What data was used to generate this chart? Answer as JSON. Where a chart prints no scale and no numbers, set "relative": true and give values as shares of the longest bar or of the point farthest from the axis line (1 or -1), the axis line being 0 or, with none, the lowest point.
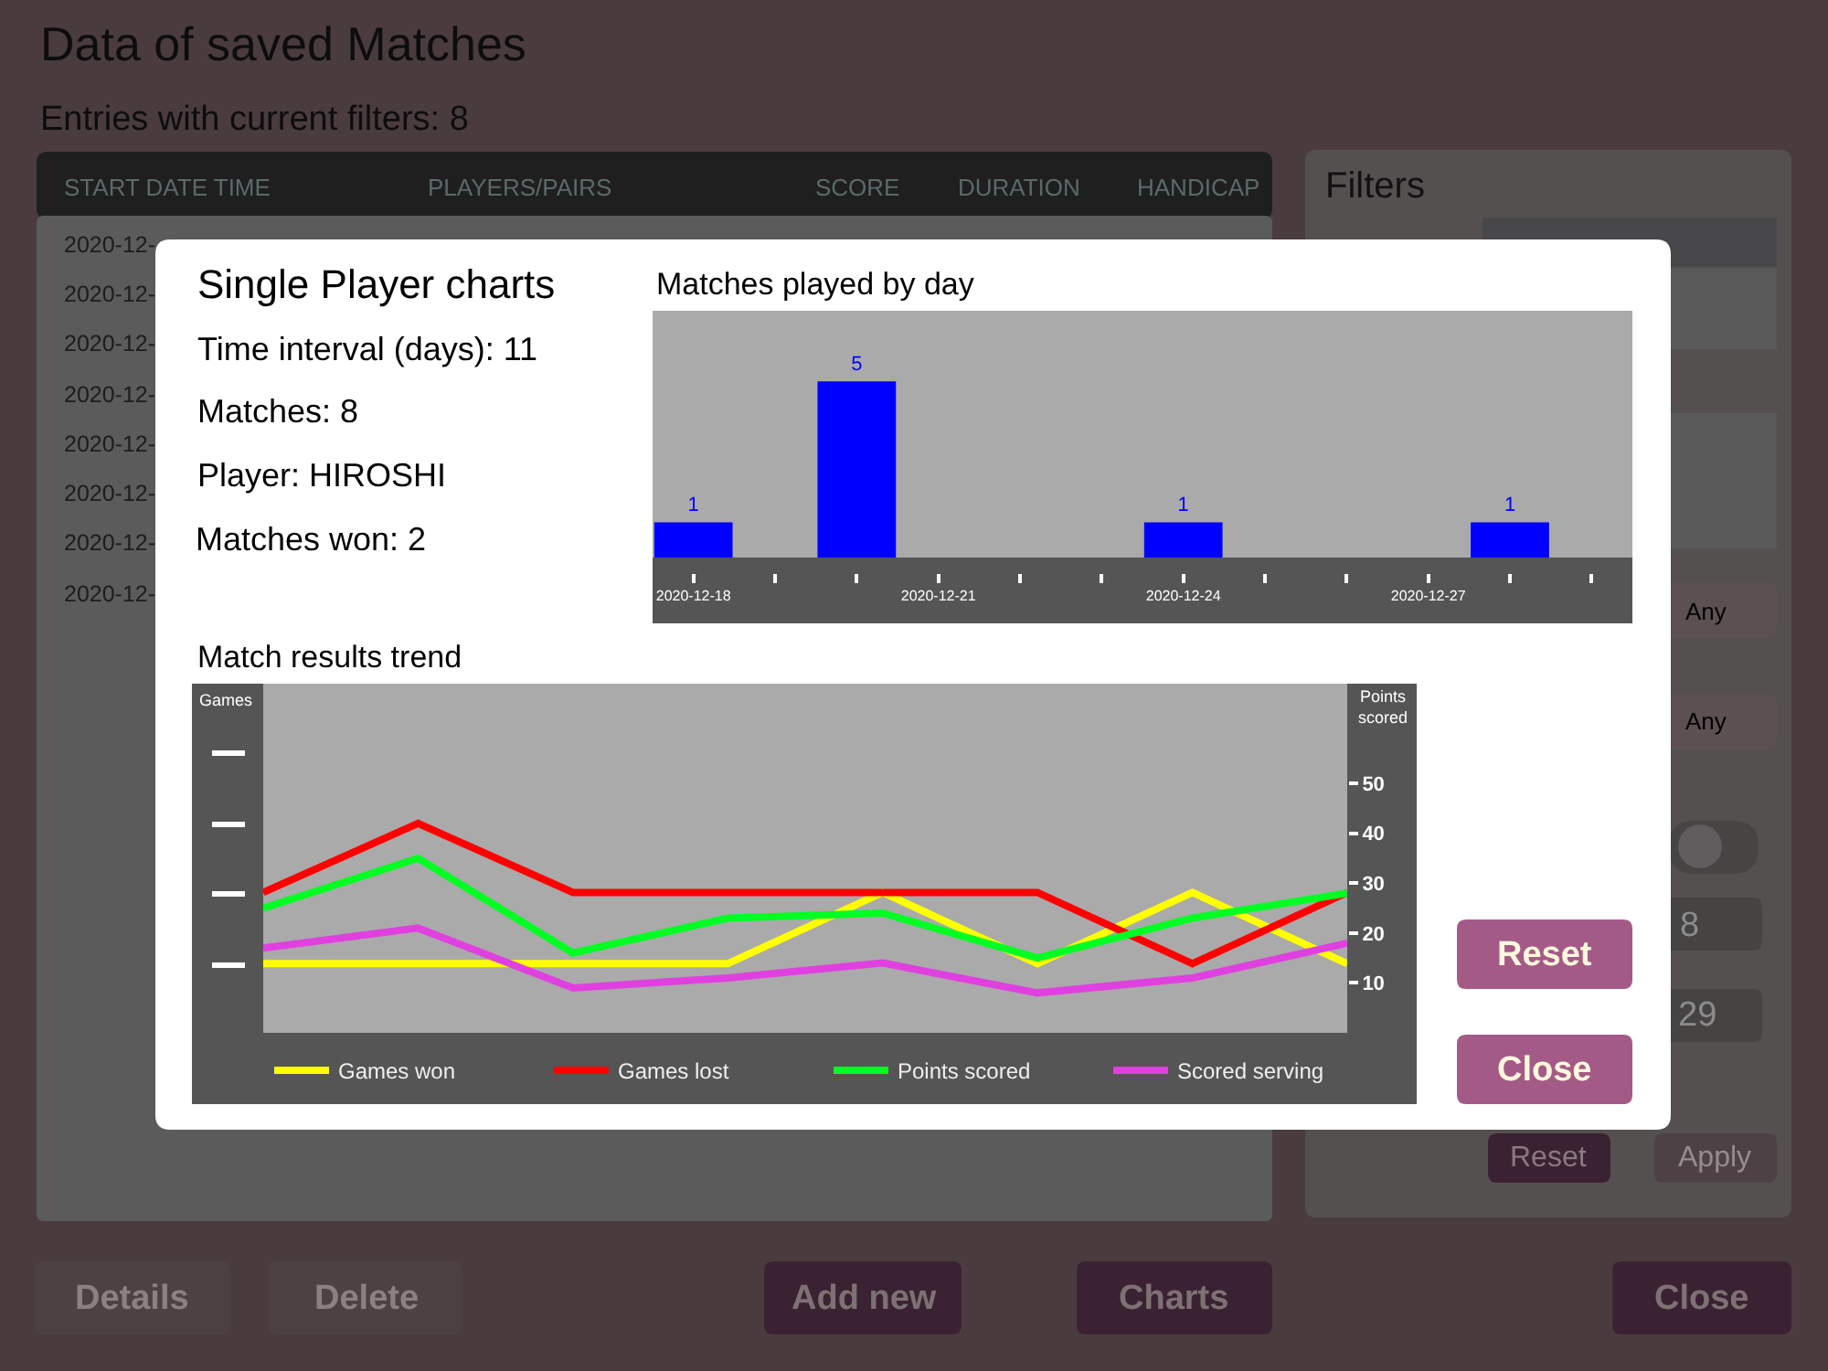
{
  "chart_data": [
    {
      "type": "other",
      "title": "Data of saved Matches",
      "subtitle": "Entries with current filters: 8",
      "annotations": [
        "START DATE TIME",
        "PLAYERS/PAIRS",
        "SCORE",
        "DURATION",
        "HANDICAP",
        "2020-12-",
        "2020-12-",
        "2020-12-",
        "2020-12-",
        "2020-12-",
        "2020-12-",
        "2020-12-",
        "2020-12-",
        "Filters",
        "Any",
        "Any",
        "8",
        "29",
        "Reset",
        "Apply",
        "Details",
        "Delete",
        "Add new",
        "Charts",
        "Close"
      ]
    },
    {
      "type": "other",
      "title": "Single Player charts",
      "annotations": [
        "Time interval (days): 11",
        "Matches: 8",
        "Player: HIROSHI",
        "Matches won: 2",
        "Reset",
        "Close"
      ]
    },
    {
      "type": "bar",
      "title": "Matches played by day",
      "x": [
        "2020-12-18",
        "2020-12-20",
        "2020-12-24",
        "2020-12-28"
      ],
      "values": [
        1,
        5,
        1,
        1
      ],
      "color": "#0000ff",
      "data_labels": true,
      "xlim": [
        "2020-12-17T12:00",
        "2020-12-29T12:00"
      ],
      "xticks": [
        "2020-12-18",
        {
          "value": "2020-12-19",
          "label": null
        },
        {
          "value": "2020-12-20",
          "label": null
        },
        "2020-12-21",
        {
          "value": "2020-12-22",
          "label": null
        },
        {
          "value": "2020-12-23",
          "label": null
        },
        "2020-12-24",
        {
          "value": "2020-12-25",
          "label": null
        },
        {
          "value": "2020-12-26",
          "label": null
        },
        "2020-12-27",
        {
          "value": "2020-12-28",
          "label": null
        },
        {
          "value": "2020-12-29",
          "label": null
        }
      ]
    },
    {
      "type": "line",
      "title": "Match results trend",
      "ylabel": "Games",
      "relative": true,
      "categories": [
        null,
        null,
        null,
        null,
        null,
        null,
        null,
        null
      ],
      "series": [
        {
          "name": "Games won",
          "color": "#ffff00",
          "values": [
            0.33,
            0.33,
            0.33,
            0.33,
            0.67,
            0.33,
            0.67,
            0.33
          ]
        },
        {
          "name": "Games lost",
          "color": "#ff0000",
          "values": [
            0.67,
            1,
            0.67,
            0.67,
            0.67,
            0.67,
            0.33,
            0.67
          ]
        }
      ],
      "legend": "bottom"
    },
    {
      "type": "line",
      "ylabel": "Points scored",
      "categories": [
        null,
        null,
        null,
        null,
        null,
        null,
        null,
        null
      ],
      "series": [
        {
          "name": "Points scored",
          "color": "#00ff22",
          "values": [
            25,
            35,
            16,
            23,
            24,
            15,
            23,
            28
          ]
        },
        {
          "name": "Scored serving",
          "color": "#e040e0",
          "values": [
            17,
            21,
            9,
            11,
            14,
            8,
            11,
            18
          ]
        }
      ],
      "ylim": [
        0,
        70
      ],
      "yticks": [
        10,
        20,
        30,
        40,
        50
      ],
      "legend": "bottom"
    }
  ]
}
